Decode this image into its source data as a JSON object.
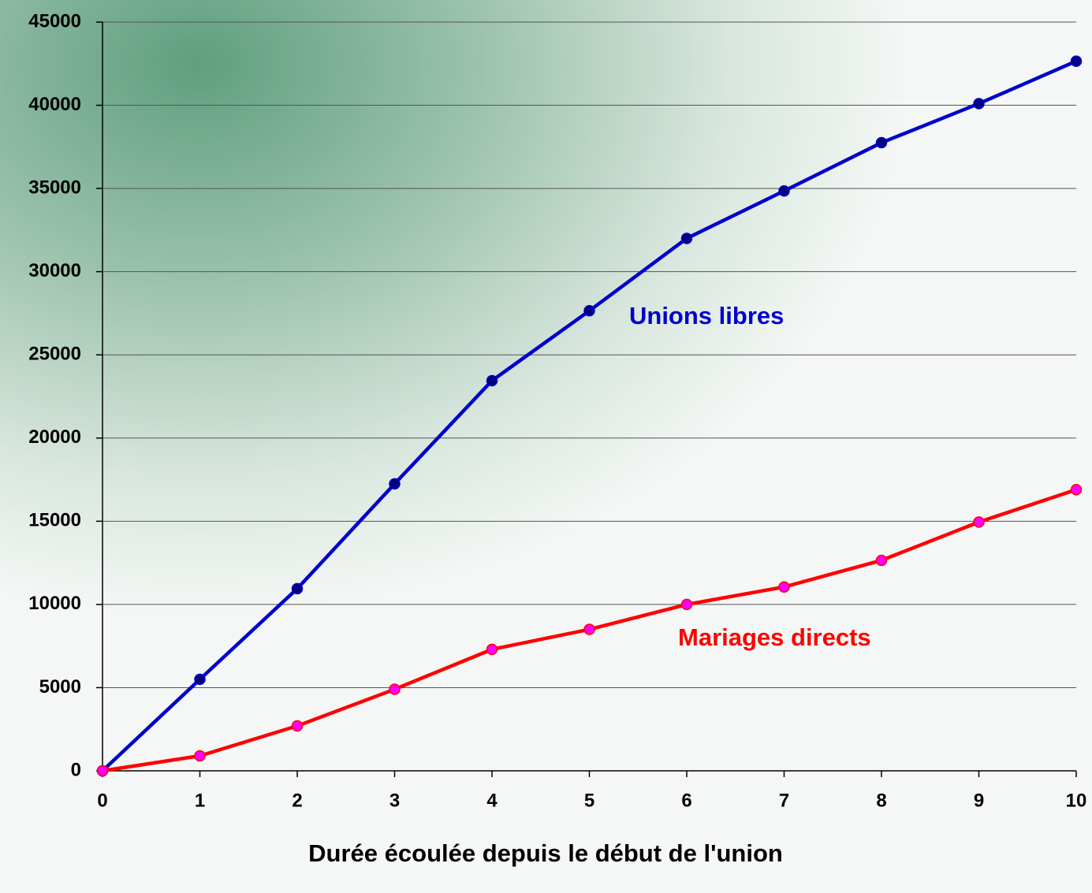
{
  "chart_data": {
    "type": "line",
    "xlabel": "Durée écoulée depuis le début de l'union",
    "x": [
      0,
      1,
      2,
      3,
      4,
      5,
      6,
      7,
      8,
      9,
      10
    ],
    "series": [
      {
        "name": "Unions libres",
        "color": "#0000cc",
        "marker_color": "#000080",
        "values": [
          0,
          5500,
          10950,
          17250,
          23450,
          27650,
          32000,
          34850,
          37750,
          40100,
          42650
        ]
      },
      {
        "name": "Mariages directs",
        "color": "#ff0000",
        "marker_color": "#ff00ff",
        "values": [
          0,
          900,
          2700,
          4900,
          7300,
          8500,
          10000,
          11050,
          12650,
          14950,
          16900
        ]
      }
    ],
    "xlim": [
      0,
      10
    ],
    "xticks": [
      0,
      1,
      2,
      3,
      4,
      5,
      6,
      7,
      8,
      9,
      10
    ],
    "ylim": [
      0,
      45000
    ],
    "yticks": [
      0,
      5000,
      10000,
      15000,
      20000,
      25000,
      30000,
      35000,
      40000,
      45000
    ],
    "grid": true
  }
}
